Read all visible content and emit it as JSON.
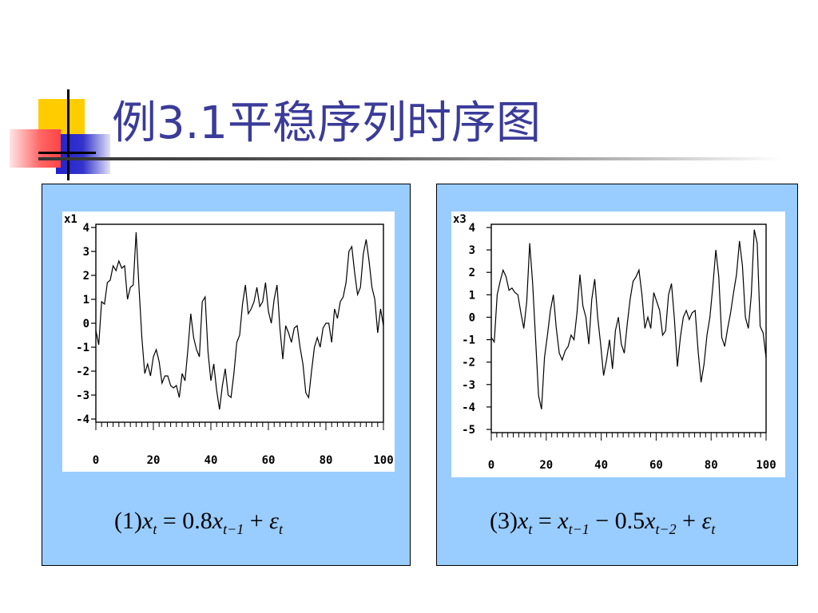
{
  "slide": {
    "title": "例3.1平稳序列时序图",
    "colors": {
      "title": "#3b3b9a",
      "panel": "#99ccff",
      "deco_yellow": "#ffcc00",
      "deco_blue": "#3333cc",
      "deco_red": "#ff5555"
    }
  },
  "panels": [
    {
      "formula": {
        "prefix": "(1)",
        "x": "x",
        "t": "t",
        "eq": " = 0.8",
        "t1": "t−1",
        "plus": " + ",
        "eps": "ε"
      }
    },
    {
      "formula": {
        "prefix": "(3)",
        "x": "x",
        "t": "t",
        "eq": " = ",
        "t1": "t−1",
        "minus": " − 0.5",
        "t2": "t−2",
        "plus": " + ",
        "eps": "ε"
      }
    }
  ],
  "chart_data": [
    {
      "type": "line",
      "ylabel": "x1",
      "xlabel": "",
      "xlim": [
        0,
        100
      ],
      "ylim": [
        -4,
        4
      ],
      "xticks": [
        0,
        20,
        40,
        60,
        80,
        100
      ],
      "yticks": [
        4,
        3,
        2,
        1,
        0,
        -1,
        -2,
        -3,
        -4
      ],
      "series": [
        {
          "values": [
            -0.3,
            -0.9,
            0.9,
            0.8,
            1.7,
            1.8,
            2.4,
            2.2,
            2.6,
            2.3,
            2.4,
            1.0,
            1.5,
            1.6,
            3.8,
            1.5,
            -0.6,
            -2.1,
            -1.7,
            -2.2,
            -1.4,
            -1.1,
            -1.6,
            -2.5,
            -2.2,
            -2.2,
            -2.6,
            -2.7,
            -2.6,
            -3.1,
            -2.1,
            -2.4,
            -1.1,
            0.4,
            -0.6,
            -1.1,
            -1.4,
            0.9,
            1.1,
            -1.2,
            -2.4,
            -1.7,
            -2.8,
            -3.6,
            -2.6,
            -1.9,
            -3.0,
            -3.1,
            -2.1,
            -0.8,
            -0.5,
            0.8,
            1.6,
            0.4,
            0.6,
            0.9,
            1.5,
            0.7,
            0.9,
            1.7,
            0.5,
            0.0,
            1.0,
            1.6,
            -0.2,
            -1.5,
            -0.1,
            -0.4,
            -0.8,
            -0.2,
            -0.1,
            -1.0,
            -1.7,
            -2.9,
            -3.1,
            -2.0,
            -1.0,
            -0.6,
            -1.0,
            -0.2,
            0.0,
            0.0,
            -0.8,
            0.6,
            0.2,
            0.9,
            1.1,
            1.7,
            3.0,
            3.2,
            2.1,
            1.2,
            1.5,
            2.9,
            3.5,
            2.6,
            1.5,
            1.0,
            -0.4,
            0.6,
            -0.1
          ]
        }
      ]
    },
    {
      "type": "line",
      "ylabel": "x3",
      "xlabel": "",
      "xlim": [
        0,
        100
      ],
      "ylim": [
        -5,
        4
      ],
      "xticks": [
        0,
        20,
        40,
        60,
        80,
        100
      ],
      "yticks": [
        4,
        3,
        2,
        1,
        0,
        -1,
        -2,
        -3,
        -4,
        -5
      ],
      "series": [
        {
          "values": [
            -0.9,
            -1.1,
            1.0,
            1.6,
            2.1,
            1.8,
            1.2,
            1.3,
            1.1,
            1.0,
            0.2,
            -0.5,
            0.7,
            3.3,
            1.5,
            -1.0,
            -3.5,
            -4.1,
            -1.8,
            -0.8,
            0.3,
            1.0,
            -0.5,
            -1.6,
            -1.9,
            -1.5,
            -1.3,
            -0.8,
            -1.0,
            0.2,
            1.9,
            0.5,
            0.0,
            -1.2,
            0.8,
            1.7,
            0.0,
            -1.2,
            -2.6,
            -1.9,
            -1.0,
            -2.3,
            -0.6,
            0.0,
            -1.2,
            -1.6,
            -0.3,
            0.8,
            1.6,
            1.8,
            2.1,
            1.0,
            -0.5,
            0.0,
            -0.5,
            1.1,
            0.7,
            0.3,
            -0.8,
            -0.6,
            1.0,
            1.5,
            -0.1,
            -2.2,
            -0.9,
            0.0,
            0.3,
            -0.1,
            0.2,
            0.3,
            -1.5,
            -2.9,
            -2.1,
            -0.8,
            0.0,
            1.4,
            3.0,
            1.8,
            -0.9,
            -1.3,
            -0.5,
            0.2,
            1.1,
            1.9,
            3.4,
            2.3,
            0.0,
            -0.5,
            1.0,
            3.9,
            3.3,
            -0.4,
            -0.7,
            -1.8
          ]
        }
      ]
    }
  ]
}
